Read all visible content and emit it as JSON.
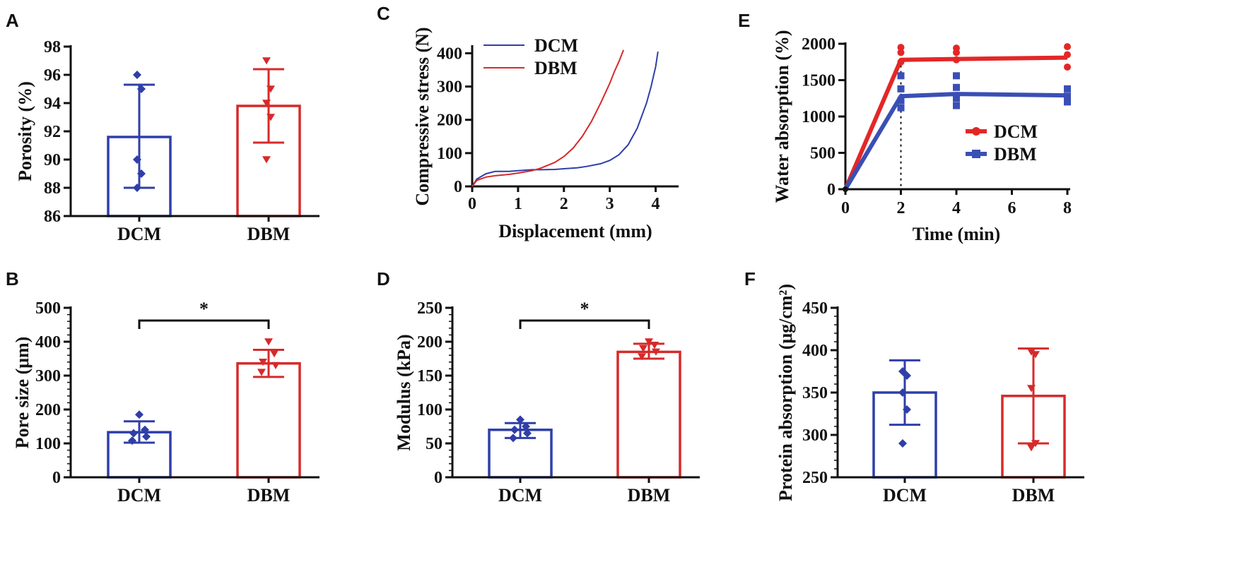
{
  "colors": {
    "dcm": "#2f3fa8",
    "dbm": "#d62a2a",
    "axis": "#111111",
    "dcm_line_e": "#e32727",
    "dbm_line_e": "#3a4fb5"
  },
  "chart_data": [
    {
      "id": "A",
      "panel_label": "A",
      "type": "bar",
      "categories": [
        "DCM",
        "DBM"
      ],
      "values": [
        91.6,
        93.8
      ],
      "error": [
        [
          88.0,
          95.3
        ],
        [
          91.2,
          96.4
        ]
      ],
      "points": [
        [
          96.0,
          95.0,
          90.0,
          89.0,
          88.0
        ],
        [
          97.0,
          95.0,
          94.0,
          93.0,
          90.0
        ]
      ],
      "ylabel": "Porosity (%)",
      "xlabel": "",
      "ylim": [
        86,
        98
      ],
      "yticks": [
        "86",
        "88",
        "90",
        "92",
        "94",
        "96",
        "98"
      ],
      "yticks_values": [
        86,
        88,
        90,
        92,
        94,
        96,
        98
      ]
    },
    {
      "id": "B",
      "panel_label": "B",
      "type": "bar",
      "categories": [
        "DCM",
        "DBM"
      ],
      "values": [
        133,
        336
      ],
      "error": [
        [
          102,
          165
        ],
        [
          296,
          376
        ]
      ],
      "points": [
        [
          185,
          140,
          130,
          120,
          108
        ],
        [
          400,
          365,
          340,
          330,
          310
        ]
      ],
      "ylabel": "Pore size (μm)",
      "xlabel": "",
      "ylim": [
        0,
        500
      ],
      "yticks": [
        "0",
        "100",
        "200",
        "300",
        "400",
        "500"
      ],
      "yticks_values": [
        0,
        100,
        200,
        300,
        400,
        500
      ],
      "significance": "*"
    },
    {
      "id": "C",
      "panel_label": "C",
      "type": "line",
      "series": [
        {
          "name": "DCM",
          "x": [
            0,
            0.1,
            0.3,
            0.5,
            0.8,
            1.0,
            1.3,
            1.5,
            1.8,
            2.0,
            2.3,
            2.5,
            2.8,
            3.0,
            3.2,
            3.4,
            3.6,
            3.8,
            3.9,
            4.0,
            4.05
          ],
          "y": [
            0,
            22,
            38,
            45,
            45,
            47,
            50,
            50,
            51,
            53,
            56,
            60,
            68,
            78,
            95,
            125,
            175,
            250,
            300,
            360,
            405
          ]
        },
        {
          "name": "DBM",
          "x": [
            0,
            0.1,
            0.3,
            0.5,
            0.8,
            1.0,
            1.3,
            1.5,
            1.8,
            2.0,
            2.2,
            2.4,
            2.6,
            2.8,
            3.0,
            3.1,
            3.2,
            3.3
          ],
          "y": [
            0,
            18,
            28,
            32,
            36,
            40,
            47,
            55,
            72,
            90,
            115,
            150,
            195,
            250,
            310,
            345,
            375,
            410
          ]
        }
      ],
      "xlabel": "Displacement (mm)",
      "ylabel": "Compressive stress (N)",
      "xlim": [
        0,
        4.5
      ],
      "ylim": [
        0,
        420
      ],
      "xticks": [
        "0",
        "1",
        "2",
        "3",
        "4"
      ],
      "xticks_values": [
        0,
        1,
        2,
        3,
        4
      ],
      "yticks": [
        "0",
        "100",
        "200",
        "300",
        "400"
      ],
      "yticks_values": [
        0,
        100,
        200,
        300,
        400
      ]
    },
    {
      "id": "D",
      "panel_label": "D",
      "type": "bar",
      "categories": [
        "DCM",
        "DBM"
      ],
      "values": [
        70,
        185
      ],
      "error": [
        [
          58,
          80
        ],
        [
          175,
          197
        ]
      ],
      "points": [
        [
          85,
          75,
          70,
          65,
          58
        ],
        [
          200,
          195,
          190,
          185,
          178
        ]
      ],
      "ylabel": "Modulus (kPa)",
      "xlabel": "",
      "ylim": [
        0,
        250
      ],
      "yticks": [
        "0",
        "50",
        "100",
        "150",
        "200",
        "250"
      ],
      "yticks_values": [
        0,
        50,
        100,
        150,
        200,
        250
      ],
      "significance": "*"
    },
    {
      "id": "E",
      "panel_label": "E",
      "type": "line",
      "series": [
        {
          "name": "DCM",
          "x": [
            0,
            2,
            4,
            8
          ],
          "y": [
            0,
            1780,
            1790,
            1810
          ],
          "points": [
            [
              2,
              1950
            ],
            [
              2,
              1880
            ],
            [
              2,
              1750
            ],
            [
              4,
              1940
            ],
            [
              4,
              1880
            ],
            [
              4,
              1780
            ],
            [
              8,
              1960
            ],
            [
              8,
              1850
            ],
            [
              8,
              1680
            ]
          ]
        },
        {
          "name": "DBM",
          "x": [
            0,
            2,
            4,
            8
          ],
          "y": [
            0,
            1280,
            1310,
            1290
          ],
          "points": [
            [
              2,
              1560
            ],
            [
              2,
              1380
            ],
            [
              2,
              1220
            ],
            [
              2,
              1120
            ],
            [
              4,
              1560
            ],
            [
              4,
              1400
            ],
            [
              4,
              1250
            ],
            [
              4,
              1150
            ],
            [
              8,
              1380
            ],
            [
              8,
              1280
            ],
            [
              8,
              1200
            ]
          ]
        }
      ],
      "xlabel": "Time (min)",
      "ylabel": "Water absorption (%)",
      "xlim": [
        0,
        8
      ],
      "ylim": [
        0,
        2000
      ],
      "xticks": [
        "0",
        "2",
        "4",
        "6",
        "8"
      ],
      "xticks_values": [
        0,
        2,
        4,
        6,
        8
      ],
      "yticks": [
        "0",
        "500",
        "1000",
        "1500",
        "2000"
      ],
      "yticks_values": [
        0,
        500,
        1000,
        1500,
        2000
      ]
    },
    {
      "id": "F",
      "panel_label": "F",
      "type": "bar",
      "categories": [
        "DCM",
        "DBM"
      ],
      "values": [
        350,
        346
      ],
      "error": [
        [
          312,
          388
        ],
        [
          290,
          402
        ]
      ],
      "points": [
        [
          375,
          370,
          350,
          330,
          290
        ],
        [
          398,
          395,
          355,
          290,
          285
        ]
      ],
      "ylabel": "Protein absorption (μg/cm²)",
      "xlabel": "",
      "ylim": [
        250,
        450
      ],
      "yticks": [
        "250",
        "300",
        "350",
        "400",
        "450"
      ],
      "yticks_values": [
        250,
        300,
        350,
        400,
        450
      ]
    }
  ]
}
